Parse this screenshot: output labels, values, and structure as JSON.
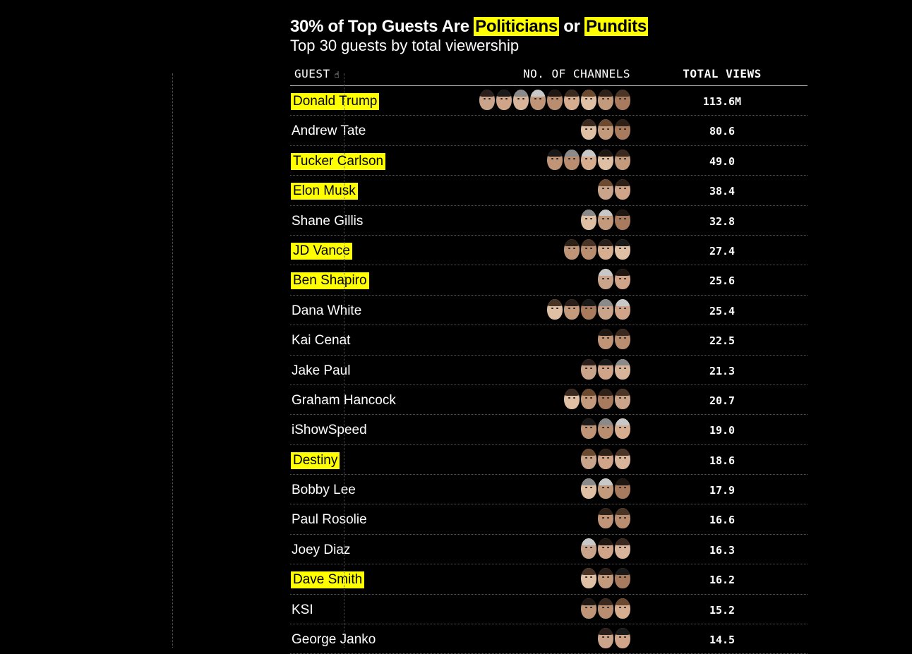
{
  "title": {
    "pre": "30% of Top Guests Are ",
    "highlight1": "Politicians",
    "mid": " or ",
    "highlight2": "Pundits"
  },
  "subtitle": "Top 30 guests by total viewership",
  "headers": {
    "guest": "GUEST",
    "guest_icon": "pointer-hand-icon",
    "channels": "NO. OF CHANNELS",
    "views": "TOTAL VIEWS"
  },
  "colors": {
    "highlight": "#ffff00",
    "background": "#000000",
    "text": "#ffffff"
  },
  "chart_data": {
    "type": "table",
    "columns": [
      "GUEST",
      "NO. OF CHANNELS",
      "TOTAL VIEWS"
    ],
    "rows": [
      {
        "guest": "Donald Trump",
        "channels": 9,
        "views": "113.6M",
        "politician_or_pundit": true
      },
      {
        "guest": "Andrew Tate",
        "channels": 3,
        "views": "80.6",
        "politician_or_pundit": false
      },
      {
        "guest": "Tucker Carlson",
        "channels": 5,
        "views": "49.0",
        "politician_or_pundit": true
      },
      {
        "guest": "Elon Musk",
        "channels": 2,
        "views": "38.4",
        "politician_or_pundit": true
      },
      {
        "guest": "Shane Gillis",
        "channels": 3,
        "views": "32.8",
        "politician_or_pundit": false
      },
      {
        "guest": "JD Vance",
        "channels": 4,
        "views": "27.4",
        "politician_or_pundit": true
      },
      {
        "guest": "Ben Shapiro",
        "channels": 2,
        "views": "25.6",
        "politician_or_pundit": true
      },
      {
        "guest": "Dana White",
        "channels": 5,
        "views": "25.4",
        "politician_or_pundit": false
      },
      {
        "guest": "Kai Cenat",
        "channels": 2,
        "views": "22.5",
        "politician_or_pundit": false
      },
      {
        "guest": "Jake Paul",
        "channels": 3,
        "views": "21.3",
        "politician_or_pundit": false
      },
      {
        "guest": "Graham Hancock",
        "channels": 4,
        "views": "20.7",
        "politician_or_pundit": false
      },
      {
        "guest": "iShowSpeed",
        "channels": 3,
        "views": "19.0",
        "politician_or_pundit": false
      },
      {
        "guest": "Destiny",
        "channels": 3,
        "views": "18.6",
        "politician_or_pundit": true
      },
      {
        "guest": "Bobby Lee",
        "channels": 3,
        "views": "17.9",
        "politician_or_pundit": false
      },
      {
        "guest": "Paul Rosolie",
        "channels": 2,
        "views": "16.6",
        "politician_or_pundit": false
      },
      {
        "guest": "Joey Diaz",
        "channels": 3,
        "views": "16.3",
        "politician_or_pundit": false
      },
      {
        "guest": "Dave Smith",
        "channels": 3,
        "views": "16.2",
        "politician_or_pundit": true
      },
      {
        "guest": "KSI",
        "channels": 3,
        "views": "15.2",
        "politician_or_pundit": false
      },
      {
        "guest": "George Janko",
        "channels": 2,
        "views": "14.5",
        "politician_or_pundit": false
      }
    ]
  }
}
